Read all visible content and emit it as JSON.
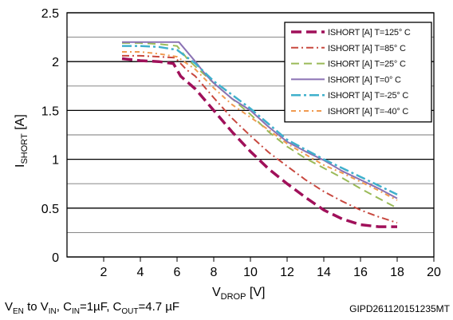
{
  "chart_data": {
    "type": "line",
    "title": "",
    "xlabel": {
      "main": "V",
      "sub": "DROP",
      "unit": " [V]"
    },
    "ylabel": {
      "main": "I",
      "sub": "SHORT",
      "unit": " [A]"
    },
    "xlim": [
      0,
      20
    ],
    "ylim": [
      0,
      2.5
    ],
    "x_ticks": [
      2,
      4,
      6,
      8,
      10,
      12,
      14,
      16,
      18,
      20
    ],
    "y_ticks": [
      0,
      0.5,
      1,
      1.5,
      2,
      2.5
    ],
    "y_tick_labels": [
      "0",
      "0.5",
      "1",
      "1.5",
      "2",
      "2.5"
    ],
    "grid": "horizontal",
    "legend_position": "top-right",
    "series": [
      {
        "name": "ISHORT [A] T=125° C",
        "color": "#a0105a",
        "dash": "13,6",
        "width": 3.5,
        "x": [
          3,
          4,
          5,
          5.8,
          6.2,
          7,
          8,
          9,
          10,
          11,
          12,
          13,
          14,
          15,
          16,
          17,
          18
        ],
        "y": [
          2.03,
          2.01,
          2.0,
          1.98,
          1.85,
          1.72,
          1.5,
          1.28,
          1.08,
          0.9,
          0.75,
          0.61,
          0.48,
          0.39,
          0.33,
          0.31,
          0.31
        ]
      },
      {
        "name": "ISHORT [A] T=85° C",
        "color": "#c8483f",
        "dash": "9,4,2,4",
        "width": 2,
        "x": [
          3,
          4,
          5,
          5.9,
          6.5,
          7,
          8,
          9,
          10,
          11,
          12,
          13,
          14,
          15,
          16,
          17,
          18
        ],
        "y": [
          2.06,
          2.06,
          2.05,
          2.04,
          1.92,
          1.85,
          1.63,
          1.42,
          1.24,
          1.07,
          0.93,
          0.79,
          0.67,
          0.57,
          0.48,
          0.41,
          0.35
        ]
      },
      {
        "name": "ISHORT [A] T=25° C",
        "color": "#9aba58",
        "dash": "10,6",
        "width": 2,
        "x": [
          3,
          4,
          5,
          6,
          6.6,
          7,
          8,
          9,
          10,
          11,
          12,
          13,
          14,
          15,
          16,
          17,
          18
        ],
        "y": [
          2.19,
          2.19,
          2.18,
          2.16,
          2.02,
          1.95,
          1.78,
          1.62,
          1.46,
          1.28,
          1.13,
          1.01,
          0.91,
          0.81,
          0.7,
          0.6,
          0.5
        ]
      },
      {
        "name": "ISHORT [A] T=0° C",
        "color": "#8a72b4",
        "dash": "",
        "width": 2,
        "x": [
          3,
          4,
          5,
          6.1,
          7,
          7.5,
          8,
          9,
          10,
          11,
          12,
          13,
          14,
          15,
          16,
          17,
          18
        ],
        "y": [
          2.2,
          2.2,
          2.2,
          2.2,
          2.0,
          1.88,
          1.78,
          1.62,
          1.5,
          1.33,
          1.18,
          1.08,
          0.99,
          0.88,
          0.79,
          0.7,
          0.6
        ]
      },
      {
        "name": "ISHORT [A] T=-25° C",
        "color": "#3fb0cc",
        "dash": "12,4,3,4",
        "width": 2.5,
        "x": [
          3,
          4,
          5,
          6,
          7,
          8,
          9,
          10,
          11,
          12,
          13,
          14,
          15,
          16,
          17,
          18
        ],
        "y": [
          2.16,
          2.16,
          2.15,
          2.12,
          1.98,
          1.8,
          1.66,
          1.52,
          1.36,
          1.2,
          1.1,
          1.0,
          0.91,
          0.82,
          0.73,
          0.64
        ]
      },
      {
        "name": "ISHORT [A] T=-40° C",
        "color": "#f09a50",
        "dash": "6,4,2,4",
        "width": 2,
        "x": [
          3,
          4,
          5,
          6,
          7,
          8,
          9,
          10,
          11,
          12,
          13,
          14,
          15,
          16,
          17,
          18
        ],
        "y": [
          2.1,
          2.1,
          2.08,
          2.05,
          1.92,
          1.73,
          1.56,
          1.43,
          1.3,
          1.16,
          1.05,
          0.94,
          0.86,
          0.77,
          0.68,
          0.58
        ]
      }
    ]
  },
  "footer": {
    "conditions": [
      {
        "t": "V",
        "s": ""
      },
      {
        "t": "EN",
        "s": "sub"
      },
      {
        "t": " to V",
        "s": ""
      },
      {
        "t": "IN",
        "s": "sub"
      },
      {
        "t": ", C",
        "s": ""
      },
      {
        "t": "IN",
        "s": "sub"
      },
      {
        "t": "=1µF, C",
        "s": ""
      },
      {
        "t": "OUT",
        "s": "sub"
      },
      {
        "t": "=4.7 µF",
        "s": ""
      }
    ],
    "code": "GIPD261120151235MT"
  }
}
